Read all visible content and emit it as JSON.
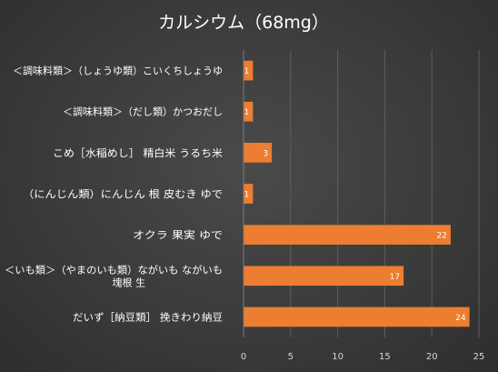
{
  "chart_data": {
    "type": "bar",
    "orientation": "horizontal",
    "title": "カルシウム（68mg）",
    "categories": [
      [
        "＜調味料類＞（しょうゆ類）こいくちしょうゆ"
      ],
      [
        "＜調味料類＞（だし類）かつおだし"
      ],
      [
        "こめ［水稲めし］ 精白米 うるち米"
      ],
      [
        "（にんじん類）にんじん 根 皮むき ゆで"
      ],
      [
        "オクラ 果実 ゆで"
      ],
      [
        "＜いも類＞（やまのいも類）ながいも ながいも",
        "塊根 生"
      ],
      [
        "だいず［納豆類］ 挽きわり納豆"
      ]
    ],
    "values": [
      1,
      1,
      3,
      1,
      22,
      17,
      24
    ],
    "data_labels": [
      "1",
      "1",
      "3",
      "1",
      "22",
      "17",
      "24"
    ],
    "xlim": [
      0,
      25
    ],
    "xticks": [
      0,
      5,
      10,
      15,
      20,
      25
    ],
    "xtick_labels": [
      "0",
      "5",
      "10",
      "15",
      "20",
      "25"
    ],
    "grid": true,
    "bar_color": "#ED7D31",
    "background_color": "#404040"
  }
}
